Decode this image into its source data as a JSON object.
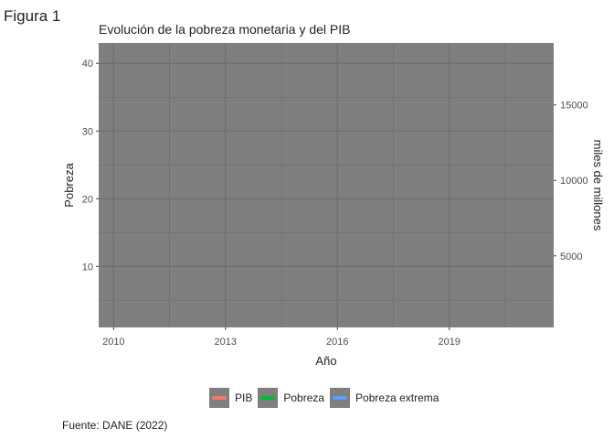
{
  "figure_label": "Figura 1",
  "caption": "Fuente: DANE (2022)",
  "chart_data": {
    "type": "line",
    "title": "Evolución de la pobreza monetaria y del PIB",
    "xlabel": "Año",
    "ylabel_left": "Pobreza",
    "ylabel_right": "miles de millones",
    "x_ticks": [
      2010,
      2013,
      2016,
      2019
    ],
    "xlim": [
      2009.6,
      2021.8
    ],
    "ylim_left": [
      1,
      43
    ],
    "y_ticks_left": [
      10,
      20,
      30,
      40
    ],
    "ylim_right": [
      260,
      19100
    ],
    "y_ticks_right": [
      5000,
      10000,
      15000
    ],
    "grid": true,
    "panel_background": "#7f7f7f",
    "series": [
      {
        "name": "PIB",
        "color": "#f8766d",
        "axis": "right",
        "x": [],
        "values": []
      },
      {
        "name": "Pobreza",
        "color": "#00ba38",
        "axis": "left",
        "x": [],
        "values": []
      },
      {
        "name": "Pobreza extrema",
        "color": "#619cff",
        "axis": "left",
        "x": [],
        "values": []
      }
    ],
    "legend_position": "bottom"
  }
}
